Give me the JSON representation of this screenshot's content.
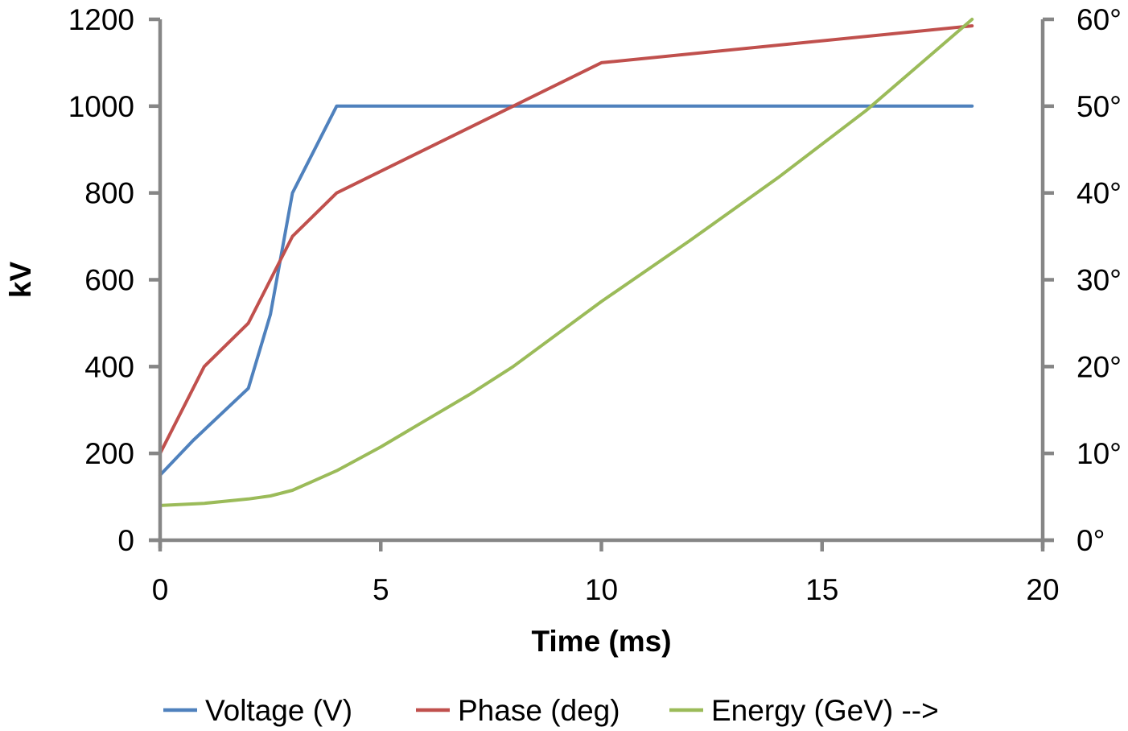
{
  "chart_data": {
    "type": "line",
    "title": "",
    "xlabel": "Time (ms)",
    "ylabel": "kV",
    "y2label": "",
    "xlim": [
      0,
      20
    ],
    "ylim": [
      0,
      1200
    ],
    "y2lim": [
      0,
      60
    ],
    "grid": false,
    "legend_position": "bottom",
    "x_ticks": [
      "0",
      "5",
      "10",
      "15",
      "20"
    ],
    "x_tick_values": [
      0,
      5,
      10,
      15,
      20
    ],
    "y_ticks": [
      "0",
      "200",
      "400",
      "600",
      "800",
      "1000",
      "1200"
    ],
    "y_tick_values": [
      0,
      200,
      400,
      600,
      800,
      1000,
      1200
    ],
    "y2_ticks": [
      "0°",
      "10°",
      "20°",
      "30°",
      "40°",
      "50°",
      "60°"
    ],
    "y2_tick_values": [
      0,
      10,
      20,
      30,
      40,
      50,
      60
    ],
    "series": [
      {
        "name": "Voltage (V)",
        "color": "#4f81bd",
        "axis": "left",
        "x": [
          0,
          0.75,
          2,
          2.5,
          3,
          4,
          18.4
        ],
        "y": [
          150,
          230,
          350,
          520,
          800,
          1000,
          1000
        ]
      },
      {
        "name": "Phase (deg)",
        "color": "#c0504d",
        "axis": "right",
        "x": [
          0,
          1,
          2,
          3,
          4,
          10,
          18.4
        ],
        "y": [
          10,
          20,
          25,
          35,
          40,
          55,
          59.25
        ]
      },
      {
        "name": "Energy (GeV) -->",
        "color": "#9bbb59",
        "axis": "left",
        "x": [
          0,
          1,
          2,
          2.5,
          3,
          4,
          5,
          6,
          7,
          8,
          10,
          12,
          14,
          16,
          18.4
        ],
        "y": [
          80,
          85,
          95,
          102,
          115,
          160,
          215,
          275,
          335,
          400,
          550,
          690,
          835,
          990,
          1200
        ]
      }
    ]
  }
}
